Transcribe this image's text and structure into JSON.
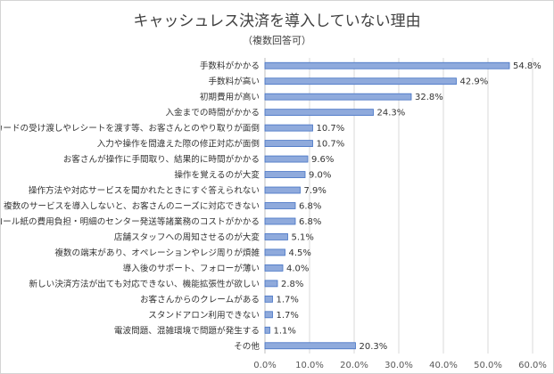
{
  "title": "キャッシュレス決済を導入していない理由",
  "subtitle": "（複数回答可）",
  "chart_data": {
    "type": "bar",
    "orientation": "horizontal",
    "categories": [
      "手数料がかかる",
      "手数料が高い",
      "初期費用が高い",
      "入金までの時間がかかる",
      "カードの受け渡しやレシートを渡す等、お客さんとのやり取りが面倒",
      "入力や操作を間違えた際の修正対応が面倒",
      "お客さんが操作に手間取り、結果的に時間がかかる",
      "操作を覚えるのが大変",
      "操作方法や対応サービスを聞かれたときにすぐ答えられない",
      "複数のサービスを導入しないと、お客さんのニーズに対応できない",
      "ロール紙の費用負担・明細のセンター発送等諸業務のコストがかかる",
      "店舗スタッフへの周知させるのが大変",
      "複数の端末があり、オペレーションやレジ周りが煩雑",
      "導入後のサポート、フォローが薄い",
      "新しい決済方法が出ても対応できない、機能拡張性が欲しい",
      "お客さんからのクレームがある",
      "スタンドアロン利用できない",
      "電波問題、混雑環境で問題が発生する",
      "その他"
    ],
    "values": [
      54.8,
      42.9,
      32.8,
      24.3,
      10.7,
      10.7,
      9.6,
      9.0,
      7.9,
      6.8,
      6.8,
      5.1,
      4.5,
      4.0,
      2.8,
      1.7,
      1.7,
      1.1,
      20.3
    ],
    "value_labels": [
      "54.8%",
      "42.9%",
      "32.8%",
      "24.3%",
      "10.7%",
      "10.7%",
      "9.6%",
      "9.0%",
      "7.9%",
      "6.8%",
      "6.8%",
      "5.1%",
      "4.5%",
      "4.0%",
      "2.8%",
      "1.7%",
      "1.7%",
      "1.1%",
      "20.3%"
    ],
    "x_ticks": [
      "0.0%",
      "10.0%",
      "20.0%",
      "30.0%",
      "40.0%",
      "50.0%",
      "60.0%"
    ],
    "xlim": [
      0,
      60
    ],
    "grid": true,
    "colors": {
      "bar_fill": "#8faadc",
      "bar_stroke": "#4472c4",
      "grid": "#d9d9d9",
      "axis": "#bfbfbf"
    }
  }
}
